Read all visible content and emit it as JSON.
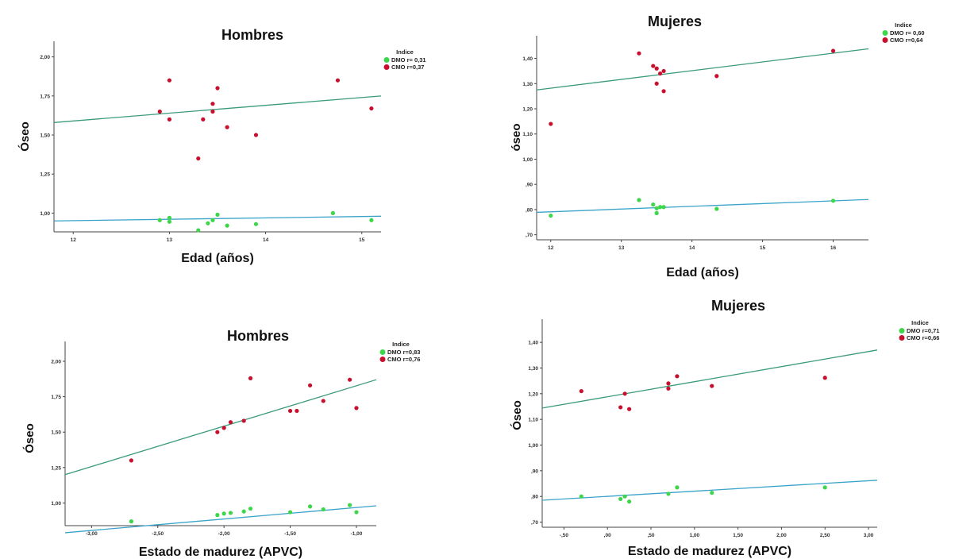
{
  "chart_data": [
    {
      "type": "scatter",
      "title": "Hombres",
      "xlabel": "Edad (años)",
      "ylabel": "Óseo",
      "xlim": [
        11.8,
        15.2
      ],
      "ylim": [
        0.88,
        2.1
      ],
      "xticks": [
        12,
        13,
        14,
        15
      ],
      "xtick_labels": [
        "12",
        "13",
        "14",
        "15"
      ],
      "yticks": [
        1.0,
        1.25,
        1.5,
        1.75,
        2.0
      ],
      "ytick_labels": [
        "1,00",
        "1,25",
        "1,50",
        "1,75",
        "2,00"
      ],
      "legend_title": "Indice",
      "series": [
        {
          "name": "DMO r= 0,31",
          "color": "#3dd64a",
          "line_color": "#3aa3c9",
          "x": [
            12.9,
            13.0,
            13.0,
            13.3,
            13.4,
            13.45,
            13.5,
            13.6,
            13.9,
            14.7,
            15.1
          ],
          "y": [
            0.955,
            0.97,
            0.945,
            0.89,
            0.935,
            0.955,
            0.99,
            0.92,
            0.93,
            1.0,
            0.955
          ],
          "fit": [
            [
              11.8,
              0.95
            ],
            [
              15.2,
              0.98
            ]
          ]
        },
        {
          "name": "CMO r=0,37",
          "color": "#c8102e",
          "line_color": "#3a9a7a",
          "x": [
            12.9,
            13.0,
            13.0,
            13.3,
            13.35,
            13.45,
            13.45,
            13.5,
            13.6,
            13.9,
            14.75,
            15.1
          ],
          "y": [
            1.65,
            1.85,
            1.6,
            1.35,
            1.6,
            1.7,
            1.65,
            1.8,
            1.55,
            1.5,
            1.85,
            1.67
          ],
          "fit": [
            [
              11.8,
              1.58
            ],
            [
              15.2,
              1.75
            ]
          ]
        }
      ]
    },
    {
      "type": "scatter",
      "title": "Mujeres",
      "xlabel": "Edad (años)",
      "ylabel": "óseo",
      "xlim": [
        11.8,
        16.5
      ],
      "ylim": [
        0.68,
        1.49
      ],
      "xticks": [
        12,
        13,
        14,
        15,
        16
      ],
      "xtick_labels": [
        "12",
        "13",
        "14",
        "15",
        "16"
      ],
      "yticks": [
        0.7,
        0.8,
        0.9,
        1.0,
        1.1,
        1.2,
        1.3,
        1.4
      ],
      "ytick_labels": [
        ",70",
        ",80",
        ",90",
        "1,00",
        "1,10",
        "1,20",
        "1,30",
        "1,40"
      ],
      "legend_title": "Indice",
      "series": [
        {
          "name": "DMO r= 0,60",
          "color": "#3dd64a",
          "line_color": "#3aa3c9",
          "x": [
            12.0,
            13.25,
            13.45,
            13.5,
            13.5,
            13.55,
            13.6,
            14.35,
            16.0
          ],
          "y": [
            0.776,
            0.838,
            0.82,
            0.805,
            0.786,
            0.81,
            0.81,
            0.803,
            0.835
          ],
          "fit": [
            [
              11.8,
              0.789
            ],
            [
              16.5,
              0.84
            ]
          ]
        },
        {
          "name": "CMO r=0,64",
          "color": "#c8102e",
          "line_color": "#3a9a7a",
          "x": [
            12.0,
            13.25,
            13.45,
            13.5,
            13.5,
            13.55,
            13.6,
            13.6,
            14.35,
            16.0
          ],
          "y": [
            1.14,
            1.42,
            1.37,
            1.36,
            1.3,
            1.34,
            1.27,
            1.35,
            1.33,
            1.43
          ],
          "fit": [
            [
              11.8,
              1.275
            ],
            [
              16.5,
              1.438
            ]
          ]
        }
      ]
    },
    {
      "type": "scatter",
      "title": "Hombres",
      "xlabel": "Estado de madurez (APVC)",
      "ylabel": "Óseo",
      "xlim": [
        -3.2,
        -0.85
      ],
      "ylim": [
        0.84,
        2.14
      ],
      "xticks": [
        -3.0,
        -2.5,
        -2.0,
        -1.5,
        -1.0
      ],
      "xtick_labels": [
        "-3,00",
        "-2,50",
        "-2,00",
        "-1,50",
        "-1,00"
      ],
      "yticks": [
        1.0,
        1.25,
        1.5,
        1.75,
        2.0
      ],
      "ytick_labels": [
        "1,00",
        "1,25",
        "1,50",
        "1,75",
        "2,00"
      ],
      "legend_title": "Indice",
      "series": [
        {
          "name": "DMO r=0,83",
          "color": "#3dd64a",
          "line_color": "#3aa3c9",
          "x": [
            -2.7,
            -2.05,
            -2.0,
            -1.95,
            -1.85,
            -1.8,
            -1.5,
            -1.35,
            -1.25,
            -1.05,
            -1.0
          ],
          "y": [
            0.87,
            0.915,
            0.925,
            0.93,
            0.94,
            0.96,
            0.935,
            0.975,
            0.955,
            0.985,
            0.935
          ],
          "fit": [
            [
              -3.2,
              0.79
            ],
            [
              -0.85,
              0.98
            ]
          ]
        },
        {
          "name": "CMO r=0,76",
          "color": "#c8102e",
          "line_color": "#3a9a7a",
          "x": [
            -2.7,
            -2.05,
            -2.0,
            -1.95,
            -1.85,
            -1.8,
            -1.5,
            -1.45,
            -1.35,
            -1.25,
            -1.05,
            -1.0
          ],
          "y": [
            1.3,
            1.5,
            1.53,
            1.57,
            1.58,
            1.88,
            1.65,
            1.65,
            1.83,
            1.72,
            1.87,
            1.67
          ],
          "fit": [
            [
              -3.2,
              1.2
            ],
            [
              -0.85,
              1.87
            ]
          ]
        }
      ]
    },
    {
      "type": "scatter",
      "title": "Mujeres",
      "xlabel": "Estado de madurez (APVC)",
      "ylabel": "Óseo",
      "xlim": [
        -0.75,
        3.1
      ],
      "ylim": [
        0.68,
        1.49
      ],
      "xticks": [
        -0.5,
        0.0,
        0.5,
        1.0,
        1.5,
        2.0,
        2.5,
        3.0
      ],
      "xtick_labels": [
        "-,50",
        ",00",
        ",50",
        "1,00",
        "1,50",
        "2,00",
        "2,50",
        "3,00"
      ],
      "yticks": [
        0.7,
        0.8,
        0.9,
        1.0,
        1.1,
        1.2,
        1.3,
        1.4
      ],
      "ytick_labels": [
        ",70",
        ",80",
        ",90",
        "1,00",
        "1,10",
        "1,20",
        "1,30",
        "1,40"
      ],
      "legend_title": "Indice",
      "series": [
        {
          "name": "DMO r=0,71",
          "color": "#3dd64a",
          "line_color": "#3aa3c9",
          "x": [
            -0.3,
            0.15,
            0.2,
            0.25,
            0.7,
            0.8,
            1.2,
            2.5
          ],
          "y": [
            0.8,
            0.79,
            0.8,
            0.78,
            0.81,
            0.835,
            0.814,
            0.835
          ],
          "fit": [
            [
              -0.75,
              0.785
            ],
            [
              3.1,
              0.863
            ]
          ]
        },
        {
          "name": "CMO r=0,66",
          "color": "#c8102e",
          "line_color": "#3a9a7a",
          "x": [
            -0.3,
            0.15,
            0.2,
            0.25,
            0.7,
            0.7,
            0.8,
            1.2,
            2.5
          ],
          "y": [
            1.21,
            1.147,
            1.2,
            1.14,
            1.24,
            1.22,
            1.268,
            1.23,
            1.262
          ],
          "fit": [
            [
              -0.75,
              1.144
            ],
            [
              3.1,
              1.37
            ]
          ]
        }
      ]
    }
  ]
}
